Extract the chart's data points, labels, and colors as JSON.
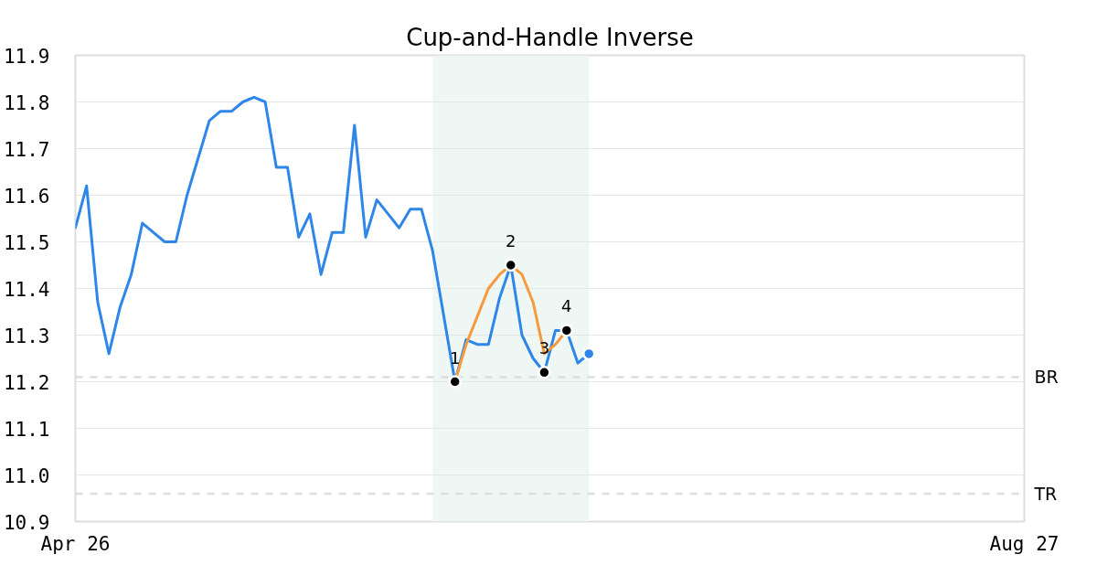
{
  "chart_data": {
    "type": "line",
    "title": "Cup-and-Handle Inverse",
    "categories": [
      "Apr 26",
      null,
      null,
      null,
      null,
      null,
      null,
      null,
      null,
      null,
      null,
      null,
      null,
      null,
      null,
      null,
      null,
      null,
      null,
      null,
      null,
      null,
      null,
      null,
      null,
      null,
      null,
      null,
      null,
      null,
      null,
      null,
      null,
      null,
      null,
      null,
      null,
      null,
      null,
      null,
      null,
      null,
      null,
      null,
      null,
      null,
      null,
      null,
      null,
      null,
      null,
      null,
      null,
      null,
      null,
      null,
      null,
      null,
      null,
      null,
      null,
      null,
      null,
      null,
      null,
      null,
      null,
      null,
      null,
      null,
      null,
      null,
      null,
      null,
      null,
      null,
      null,
      null,
      null,
      null,
      null,
      null,
      null,
      null,
      null,
      "Aug 27"
    ],
    "ylim": [
      10.9,
      11.9
    ],
    "yticks": [
      10.9,
      {
        "value": 11,
        "label": "11.0"
      },
      11.1,
      11.2,
      11.3,
      11.4,
      11.5,
      11.6,
      11.7,
      11.8,
      11.9
    ],
    "grid": "y",
    "series": [
      {
        "color": "#2e86e8",
        "values": [
          11.53,
          11.62,
          11.37,
          11.26,
          11.36,
          11.43,
          11.54,
          11.52,
          11.5,
          11.5,
          11.6,
          11.68,
          11.76,
          11.78,
          11.78,
          11.8,
          11.81,
          11.8,
          11.66,
          11.66,
          11.51,
          11.56,
          11.43,
          11.52,
          11.52,
          11.75,
          11.51,
          11.59,
          11.56,
          11.53,
          11.57,
          11.57,
          11.48,
          11.34,
          11.2,
          11.29,
          11.28,
          11.28,
          11.38,
          11.45,
          11.3,
          11.25,
          11.22,
          11.31,
          11.31,
          11.24,
          11.26,
          null,
          null,
          null,
          null,
          null,
          null,
          null,
          null,
          null,
          null,
          null,
          null,
          null,
          null,
          null,
          null,
          null,
          null,
          null,
          null,
          null,
          null,
          null,
          null,
          null,
          null,
          null,
          null,
          null,
          null,
          null,
          null,
          null,
          null,
          null,
          null,
          null,
          null,
          null
        ]
      },
      {
        "color": "#f79a3e",
        "values": [
          null,
          null,
          null,
          null,
          null,
          null,
          null,
          null,
          null,
          null,
          null,
          null,
          null,
          null,
          null,
          null,
          null,
          null,
          null,
          null,
          null,
          null,
          null,
          null,
          null,
          null,
          null,
          null,
          null,
          null,
          null,
          null,
          null,
          null,
          11.2,
          11.28,
          11.34,
          11.4,
          11.43,
          11.45,
          11.43,
          11.37,
          11.26,
          11.28,
          11.31,
          null,
          null,
          null,
          null,
          null,
          null,
          null,
          null,
          null,
          null,
          null,
          null,
          null,
          null,
          null,
          null,
          null,
          null,
          null,
          null,
          null,
          null,
          null,
          null,
          null,
          null,
          null,
          null,
          null,
          null,
          null,
          null,
          null,
          null,
          null,
          null,
          null,
          null,
          null,
          null,
          null
        ]
      },
      {
        "type": "scatter",
        "color": "#000000",
        "marker": "circle",
        "values": [
          null,
          null,
          null,
          null,
          null,
          null,
          null,
          null,
          null,
          null,
          null,
          null,
          null,
          null,
          null,
          null,
          null,
          null,
          null,
          null,
          null,
          null,
          null,
          null,
          null,
          null,
          null,
          null,
          null,
          null,
          null,
          null,
          null,
          null,
          11.2,
          null,
          null,
          null,
          null,
          11.45,
          null,
          null,
          11.22,
          null,
          11.31,
          null,
          null,
          null,
          null,
          null,
          null,
          null,
          null,
          null,
          null,
          null,
          null,
          null,
          null,
          null,
          null,
          null,
          null,
          null,
          null,
          null,
          null,
          null,
          null,
          null,
          null,
          null,
          null,
          null,
          null,
          null,
          null,
          null,
          null,
          null,
          null,
          null,
          null,
          null,
          null,
          null
        ]
      },
      {
        "type": "scatter",
        "color": "#2e86e8",
        "marker": "circle",
        "values": [
          null,
          null,
          null,
          null,
          null,
          null,
          null,
          null,
          null,
          null,
          null,
          null,
          null,
          null,
          null,
          null,
          null,
          null,
          null,
          null,
          null,
          null,
          null,
          null,
          null,
          null,
          null,
          null,
          null,
          null,
          null,
          null,
          null,
          null,
          null,
          null,
          null,
          null,
          null,
          null,
          null,
          null,
          null,
          null,
          null,
          null,
          11.26,
          null,
          null,
          null,
          null,
          null,
          null,
          null,
          null,
          null,
          null,
          null,
          null,
          null,
          null,
          null,
          null,
          null,
          null,
          null,
          null,
          null,
          null,
          null,
          null,
          null,
          null,
          null,
          null,
          null,
          null,
          null,
          null,
          null,
          null,
          null,
          null,
          null,
          null,
          null
        ]
      }
    ],
    "annotations": [
      {
        "text": "1",
        "y": 11.2
      },
      {
        "text": "2",
        "y": 11.45
      },
      {
        "text": "3",
        "y": 11.22
      },
      {
        "text": "4",
        "y": 11.31
      }
    ],
    "ref_lines": [
      {
        "axis": "y",
        "value": 11.21,
        "label": "BR",
        "color": "#dddddd",
        "line_style": "dashed"
      },
      {
        "axis": "y",
        "value": 10.96,
        "label": "TR",
        "color": "#dddddd",
        "line_style": "dashed"
      }
    ]
  }
}
